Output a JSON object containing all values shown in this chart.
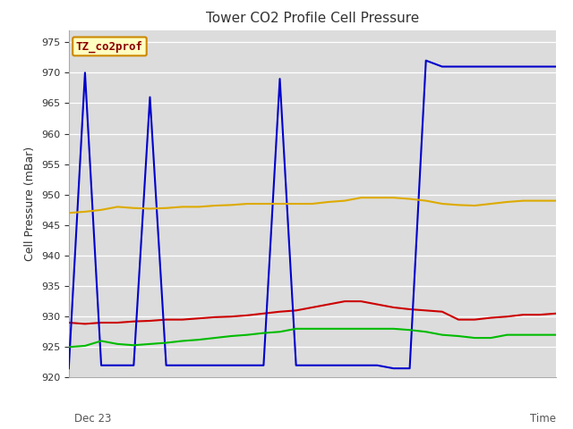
{
  "title": "Tower CO2 Profile Cell Pressure",
  "ylabel": "Cell Pressure (mBar)",
  "watermark": "TZ_co2prof",
  "ylim": [
    920,
    977
  ],
  "bg_color": "#dcdcdc",
  "fig_bg": "#ffffff",
  "red": {
    "color": "#cc0000",
    "x": [
      0,
      1,
      2,
      3,
      4,
      5,
      6,
      7,
      8,
      9,
      10,
      11,
      12,
      13,
      14,
      15,
      16,
      17,
      18,
      19,
      20,
      21,
      22,
      23,
      24,
      25,
      26,
      27,
      28,
      29,
      30
    ],
    "y": [
      929,
      928.8,
      929,
      929,
      929.2,
      929.3,
      929.5,
      929.5,
      929.7,
      929.9,
      930,
      930.2,
      930.5,
      930.8,
      931,
      931.5,
      932,
      932.5,
      932.5,
      932,
      931.5,
      931.2,
      931,
      930.8,
      929.5,
      929.5,
      929.8,
      930,
      930.3,
      930.3,
      930.5
    ]
  },
  "blue": {
    "color": "#0000cc",
    "x": [
      0,
      1,
      2,
      3,
      4,
      5,
      6,
      7,
      8,
      9,
      10,
      11,
      12,
      13,
      14,
      15,
      16,
      17,
      18,
      19,
      20,
      21,
      22,
      23,
      24,
      25,
      26,
      27,
      28,
      29,
      30
    ],
    "y": [
      921.5,
      970,
      922,
      922,
      922,
      966,
      922,
      922,
      922,
      922,
      922,
      922,
      922,
      969,
      922,
      922,
      922,
      922,
      922,
      922,
      921.5,
      921.5,
      972,
      971,
      971,
      971,
      971,
      971,
      971,
      971,
      971
    ]
  },
  "green": {
    "color": "#00bb00",
    "x": [
      0,
      1,
      2,
      3,
      4,
      5,
      6,
      7,
      8,
      9,
      10,
      11,
      12,
      13,
      14,
      15,
      16,
      17,
      18,
      19,
      20,
      21,
      22,
      23,
      24,
      25,
      26,
      27,
      28,
      29,
      30
    ],
    "y": [
      925,
      925.2,
      926,
      925.5,
      925.3,
      925.5,
      925.7,
      926,
      926.2,
      926.5,
      926.8,
      927,
      927.3,
      927.5,
      928,
      928,
      928,
      928,
      928,
      928,
      928,
      927.8,
      927.5,
      927,
      926.8,
      926.5,
      926.5,
      927,
      927,
      927,
      927
    ]
  },
  "orange": {
    "color": "#ddaa00",
    "x": [
      0,
      1,
      2,
      3,
      4,
      5,
      6,
      7,
      8,
      9,
      10,
      11,
      12,
      13,
      14,
      15,
      16,
      17,
      18,
      19,
      20,
      21,
      22,
      23,
      24,
      25,
      26,
      27,
      28,
      29,
      30
    ],
    "y": [
      947,
      947.2,
      947.5,
      948,
      947.8,
      947.7,
      947.8,
      948,
      948,
      948.2,
      948.3,
      948.5,
      948.5,
      948.5,
      948.5,
      948.5,
      948.8,
      949,
      949.5,
      949.5,
      949.5,
      949.3,
      949,
      948.5,
      948.3,
      948.2,
      948.5,
      948.8,
      949,
      949,
      949
    ]
  }
}
